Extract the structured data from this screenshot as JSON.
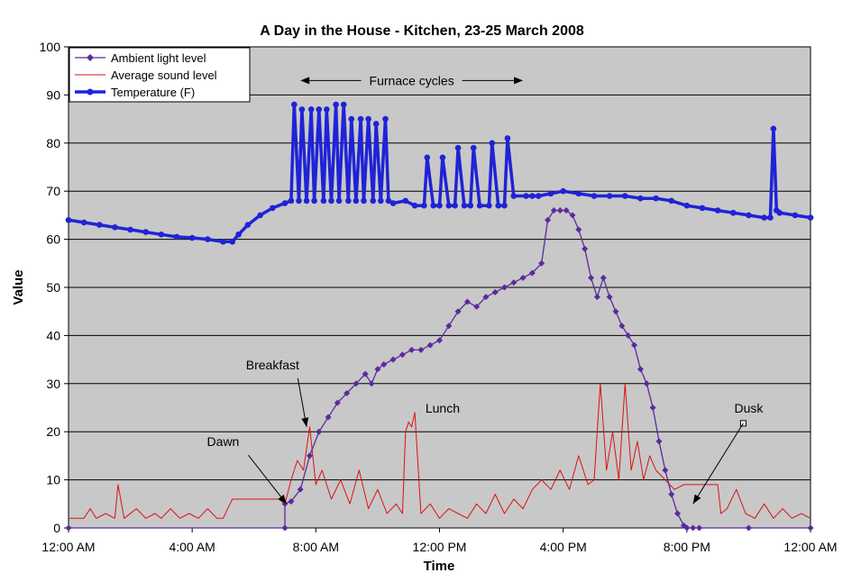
{
  "chart_data": {
    "type": "line",
    "title": "A Day in the House - Kitchen, 23-25 March 2008",
    "xlabel": "Time",
    "ylabel": "Value",
    "xlim": [
      0,
      24
    ],
    "ylim": [
      0,
      100
    ],
    "grid": true,
    "legend_position": "top-left",
    "x_ticks": [
      {
        "x": 0,
        "label": "12:00 AM"
      },
      {
        "x": 4,
        "label": "4:00 AM"
      },
      {
        "x": 8,
        "label": "8:00 AM"
      },
      {
        "x": 12,
        "label": "12:00 PM"
      },
      {
        "x": 16,
        "label": "4:00 PM"
      },
      {
        "x": 20,
        "label": "8:00 PM"
      },
      {
        "x": 24,
        "label": "12:00 AM"
      }
    ],
    "y_ticks": [
      0,
      10,
      20,
      30,
      40,
      50,
      60,
      70,
      80,
      90,
      100
    ],
    "series": [
      {
        "name": "Ambient light level",
        "color": "#5b2a9e",
        "marker": "diamond",
        "x": [
          0,
          7.0,
          7.0,
          7.2,
          7.5,
          7.8,
          8.1,
          8.4,
          8.7,
          9.0,
          9.3,
          9.6,
          9.8,
          10.0,
          10.2,
          10.5,
          10.8,
          11.1,
          11.4,
          11.7,
          12.0,
          12.3,
          12.6,
          12.9,
          13.2,
          13.5,
          13.8,
          14.1,
          14.4,
          14.7,
          15.0,
          15.3,
          15.5,
          15.7,
          15.9,
          16.1,
          16.3,
          16.5,
          16.7,
          16.9,
          17.1,
          17.3,
          17.5,
          17.7,
          17.9,
          18.1,
          18.3,
          18.5,
          18.7,
          18.9,
          19.1,
          19.3,
          19.5,
          19.7,
          19.9,
          20.0,
          20.2,
          20.4,
          22.0,
          24.0
        ],
        "y": [
          0,
          0,
          5,
          5.5,
          8,
          15,
          20,
          23,
          26,
          28,
          30,
          32,
          30,
          33,
          34,
          35,
          36,
          37,
          37,
          38,
          39,
          42,
          45,
          47,
          46,
          48,
          49,
          50,
          51,
          52,
          53,
          55,
          64,
          66,
          66,
          66,
          65,
          62,
          58,
          52,
          48,
          52,
          48,
          45,
          42,
          40,
          38,
          33,
          30,
          25,
          18,
          12,
          7,
          3,
          0.5,
          0,
          0,
          0,
          0,
          0
        ]
      },
      {
        "name": "Average sound level",
        "color": "#dd1111",
        "marker": "none",
        "x": [
          0,
          0.5,
          0.7,
          0.9,
          1.2,
          1.5,
          1.6,
          1.8,
          2.2,
          2.5,
          2.8,
          3.0,
          3.3,
          3.6,
          3.9,
          4.2,
          4.5,
          4.8,
          5.0,
          5.3,
          5.6,
          5.9,
          6.2,
          6.5,
          6.8,
          7.0,
          7.2,
          7.4,
          7.6,
          7.8,
          8.0,
          8.2,
          8.5,
          8.8,
          9.1,
          9.4,
          9.7,
          10.0,
          10.3,
          10.6,
          10.8,
          10.9,
          11.0,
          11.1,
          11.2,
          11.4,
          11.7,
          12.0,
          12.3,
          12.6,
          12.9,
          13.2,
          13.5,
          13.8,
          14.1,
          14.4,
          14.7,
          15.0,
          15.3,
          15.6,
          15.9,
          16.2,
          16.5,
          16.8,
          17.0,
          17.2,
          17.4,
          17.6,
          17.8,
          18.0,
          18.2,
          18.4,
          18.6,
          18.8,
          19.0,
          19.3,
          19.6,
          19.9,
          20.2,
          20.5,
          20.8,
          21.0,
          21.1,
          21.3,
          21.6,
          21.9,
          22.2,
          22.5,
          22.8,
          23.1,
          23.4,
          23.7,
          24.0
        ],
        "y": [
          2,
          2,
          4,
          2,
          3,
          2,
          9,
          2,
          4,
          2,
          3,
          2,
          4,
          2,
          3,
          2,
          4,
          2,
          2,
          6,
          6,
          6,
          6,
          6,
          6,
          5,
          10,
          14,
          12,
          21,
          9,
          12,
          6,
          10,
          5,
          12,
          4,
          8,
          3,
          5,
          3,
          20,
          22,
          21,
          24,
          3,
          5,
          2,
          4,
          3,
          2,
          5,
          3,
          7,
          3,
          6,
          4,
          8,
          10,
          8,
          12,
          8,
          15,
          9,
          10,
          30,
          12,
          20,
          10,
          30,
          12,
          18,
          10,
          15,
          12,
          10,
          8,
          9,
          9,
          9,
          9,
          9,
          3,
          4,
          8,
          3,
          2,
          5,
          2,
          4,
          2,
          3,
          2
        ]
      },
      {
        "name": "Temperature (F)",
        "color": "#1f23d6",
        "marker": "circle",
        "x": [
          0,
          0.5,
          1,
          1.5,
          2,
          2.5,
          3,
          3.5,
          4,
          4.5,
          5,
          5.3,
          5.5,
          5.8,
          6.2,
          6.6,
          7.0,
          7.2,
          7.3,
          7.45,
          7.55,
          7.7,
          7.85,
          7.95,
          8.1,
          8.25,
          8.35,
          8.5,
          8.65,
          8.75,
          8.9,
          9.05,
          9.15,
          9.3,
          9.45,
          9.55,
          9.7,
          9.85,
          9.95,
          10.1,
          10.25,
          10.35,
          10.5,
          10.9,
          11.2,
          11.5,
          11.6,
          11.8,
          12.0,
          12.1,
          12.3,
          12.5,
          12.6,
          12.8,
          13.0,
          13.1,
          13.3,
          13.6,
          13.7,
          13.9,
          14.1,
          14.2,
          14.4,
          14.8,
          15.0,
          15.2,
          15.6,
          16.0,
          16.5,
          17.0,
          17.5,
          18.0,
          18.5,
          19.0,
          19.5,
          20.0,
          20.5,
          21.0,
          21.5,
          22.0,
          22.5,
          22.7,
          22.8,
          22.9,
          23.0,
          23.5,
          24.0
        ],
        "y": [
          64,
          63.5,
          63,
          62.5,
          62,
          61.5,
          61,
          60.5,
          60.3,
          60,
          59.5,
          59.5,
          61,
          63,
          65,
          66.5,
          67.5,
          68,
          88,
          68,
          87,
          68,
          87,
          68,
          87,
          68,
          87,
          68,
          88,
          68,
          88,
          68,
          85,
          68,
          85,
          68,
          85,
          68,
          84,
          68,
          85,
          68,
          67.5,
          68,
          67,
          67,
          77,
          67,
          67,
          77,
          67,
          67,
          79,
          67,
          67,
          79,
          67,
          67,
          80,
          67,
          67,
          81,
          69,
          69,
          69,
          69,
          69.5,
          70,
          69.5,
          69,
          69,
          69,
          68.5,
          68.5,
          68,
          67,
          66.5,
          66,
          65.5,
          65,
          64.5,
          64.5,
          83,
          66,
          65.5,
          65,
          64.5
        ]
      }
    ],
    "annotations": [
      {
        "label": "Furnace cycles",
        "x_start": 7.5,
        "x_end": 14.7,
        "y": 93
      },
      {
        "label": "Breakfast",
        "text_x": 6.6,
        "text_y": 33,
        "point_x": 7.7,
        "point_y": 21
      },
      {
        "label": "Lunch",
        "text_x": 12.1,
        "text_y": 24,
        "point_x": 0,
        "point_y": 0
      },
      {
        "label": "Dawn",
        "text_x": 5.0,
        "text_y": 17,
        "point_x": 7.05,
        "point_y": 5
      },
      {
        "label": "Dusk",
        "text_x": 22.0,
        "text_y": 24,
        "point_x": 20.2,
        "point_y": 5
      }
    ]
  }
}
